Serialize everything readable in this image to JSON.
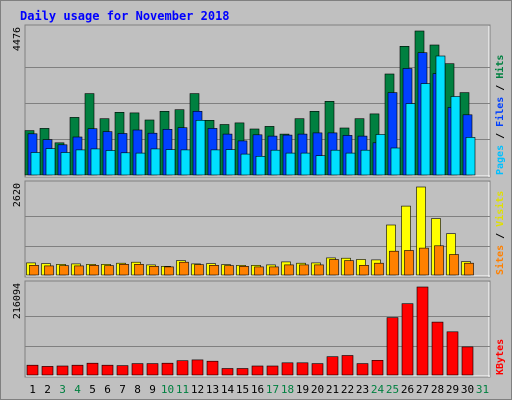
{
  "chart_data": {
    "type": "bar",
    "title": "Daily usage for November 2018",
    "categories": [
      "1",
      "2",
      "3",
      "4",
      "5",
      "6",
      "7",
      "8",
      "9",
      "10",
      "11",
      "12",
      "13",
      "14",
      "15",
      "16",
      "17",
      "18",
      "19",
      "20",
      "21",
      "22",
      "23",
      "24",
      "25",
      "26",
      "27",
      "28",
      "29",
      "30",
      "31"
    ],
    "weekend_days": [
      "3",
      "4",
      "10",
      "11",
      "17",
      "18",
      "24",
      "25",
      "31"
    ],
    "panels": [
      {
        "id": "top",
        "ymax_label": "4476",
        "ymax": 4476,
        "label_parts": [
          "Pages",
          "Files",
          "Hits"
        ],
        "series": [
          {
            "name": "Hits",
            "color": "#008040",
            "values": [
              1380,
              1450,
              1000,
              1790,
              2530,
              1750,
              1950,
              1930,
              1710,
              1980,
              2030,
              2530,
              1700,
              1570,
              1620,
              1430,
              1510,
              1270,
              1750,
              1980,
              2290,
              1460,
              1750,
              1900,
              3140,
              4000,
              4476,
              4040,
              3460,
              2560,
              0
            ]
          },
          {
            "name": "Files",
            "color": "#0040ff",
            "values": [
              1280,
              1100,
              940,
              1180,
              1440,
              1350,
              1290,
              1400,
              1300,
              1420,
              1470,
              1980,
              1450,
              1270,
              1060,
              1250,
              1210,
              1240,
              1270,
              1310,
              1310,
              1230,
              1210,
              1000,
              2560,
              3310,
              3800,
              3150,
              2100,
              1870,
              0
            ]
          },
          {
            "name": "Pages",
            "color": "#00e0ff",
            "values": [
              700,
              820,
              700,
              780,
              810,
              760,
              690,
              680,
              810,
              790,
              780,
              1700,
              780,
              790,
              650,
              580,
              770,
              680,
              680,
              600,
              770,
              680,
              770,
              1260,
              840,
              2220,
              2840,
              3700,
              2440,
              1170,
              0
            ]
          }
        ]
      },
      {
        "id": "mid",
        "ymax_label": "2620",
        "ymax": 2620,
        "label_parts": [
          "Sites",
          "Visits"
        ],
        "series": [
          {
            "name": "Visits",
            "color": "#ffff00",
            "values": [
              360,
              340,
              320,
              330,
              320,
              320,
              350,
              380,
              300,
              260,
              430,
              330,
              340,
              310,
              290,
              290,
              300,
              390,
              350,
              360,
              510,
              500,
              460,
              450,
              1490,
              2050,
              2620,
              1680,
              1230,
              400,
              0
            ]
          },
          {
            "name": "Sites",
            "color": "#ff8000",
            "values": [
              290,
              270,
              280,
              270,
              290,
              280,
              320,
              320,
              260,
              240,
              380,
              310,
              290,
              280,
              260,
              240,
              240,
              300,
              300,
              300,
              460,
              430,
              290,
              350,
              710,
              730,
              800,
              870,
              610,
              350,
              0
            ]
          }
        ]
      },
      {
        "id": "bot",
        "ymax_label": "216094",
        "ymax": 216094,
        "label_parts": [
          "KBytes"
        ],
        "series": [
          {
            "name": "KBytes",
            "color": "#ff0000",
            "values": [
              24000,
              21000,
              22000,
              24000,
              29000,
              24000,
              23000,
              28000,
              28000,
              29000,
              35000,
              37000,
              34000,
              16000,
              16000,
              22000,
              22000,
              30000,
              30000,
              28000,
              45000,
              48000,
              28000,
              36000,
              141000,
              175000,
              216094,
              130000,
              106000,
              69000,
              0
            ]
          }
        ]
      }
    ]
  },
  "colors": {
    "title": "#0000ff",
    "background": "#c0c0c0",
    "border": "#808080",
    "weekday_label": "#000000",
    "weekend_label": "#008040",
    "legend_separator": "#000000",
    "legend_colors": {
      "Pages": "#00c0ff",
      "Files": "#0040ff",
      "Hits": "#008040",
      "Sites": "#ff8000",
      "Visits": "#e0e000",
      "KBytes": "#ff0000"
    }
  }
}
